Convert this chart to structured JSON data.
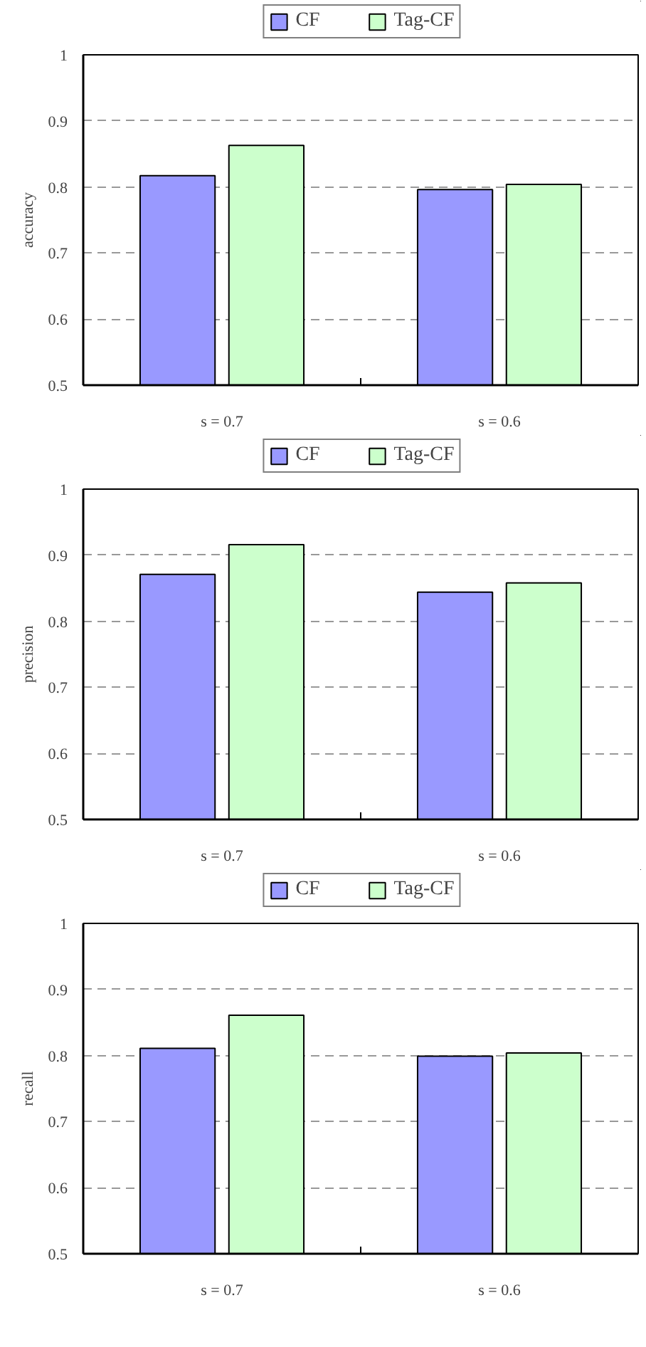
{
  "chart_data": [
    {
      "type": "bar",
      "ylabel": "accuracy",
      "categories": [
        "s = 0.7",
        "s = 0.6"
      ],
      "series": [
        {
          "name": "CF",
          "color": "#9999ff",
          "values": [
            0.817,
            0.796
          ]
        },
        {
          "name": "Tag-CF",
          "color": "#ccffcc",
          "values": [
            0.863,
            0.804
          ]
        }
      ],
      "ylim": [
        0.5,
        1
      ],
      "yticks": [
        0.5,
        0.6,
        0.7,
        0.8,
        0.9,
        1
      ],
      "grid": "y",
      "legend": "top"
    },
    {
      "type": "bar",
      "ylabel": "precision",
      "categories": [
        "s = 0.7",
        "s = 0.6"
      ],
      "series": [
        {
          "name": "CF",
          "color": "#9999ff",
          "values": [
            0.871,
            0.844
          ]
        },
        {
          "name": "Tag-CF",
          "color": "#ccffcc",
          "values": [
            0.916,
            0.858
          ]
        }
      ],
      "ylim": [
        0.5,
        1
      ],
      "yticks": [
        0.5,
        0.6,
        0.7,
        0.8,
        0.9,
        1
      ],
      "grid": "y",
      "legend": "top"
    },
    {
      "type": "bar",
      "ylabel": "recall",
      "categories": [
        "s = 0.7",
        "s = 0.6"
      ],
      "series": [
        {
          "name": "CF",
          "color": "#9999ff",
          "values": [
            0.811,
            0.799
          ]
        },
        {
          "name": "Tag-CF",
          "color": "#ccffcc",
          "values": [
            0.861,
            0.804
          ]
        }
      ],
      "ylim": [
        0.5,
        1
      ],
      "yticks": [
        0.5,
        0.6,
        0.7,
        0.8,
        0.9,
        1
      ],
      "grid": "y",
      "legend": "top"
    }
  ]
}
